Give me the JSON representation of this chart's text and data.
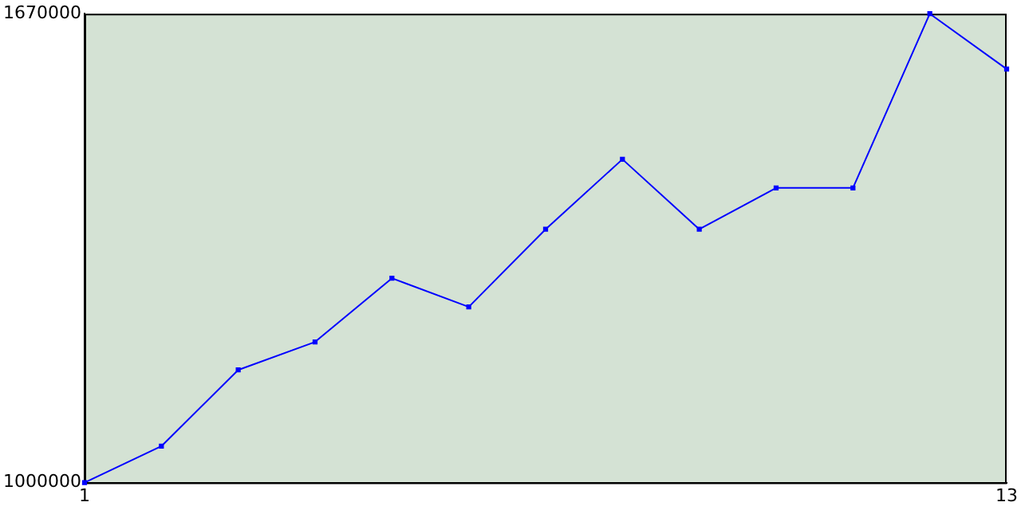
{
  "chart_data": {
    "type": "line",
    "x": [
      1,
      2,
      3,
      4,
      5,
      6,
      7,
      8,
      9,
      10,
      11,
      12,
      13
    ],
    "series": [
      {
        "color": "#0000ff",
        "values": [
          1000000,
          1052000,
          1161000,
          1201000,
          1292000,
          1251000,
          1362000,
          1462000,
          1362000,
          1421000,
          1421000,
          1670000,
          1591000
        ]
      }
    ],
    "xlim": [
      1,
      13
    ],
    "xticks": [
      1,
      13
    ],
    "ylim": [
      1000000,
      1670000
    ],
    "yticks": [
      1000000,
      1670000
    ],
    "grid": false,
    "legend": false,
    "marker": "square",
    "line_style": "solid"
  }
}
